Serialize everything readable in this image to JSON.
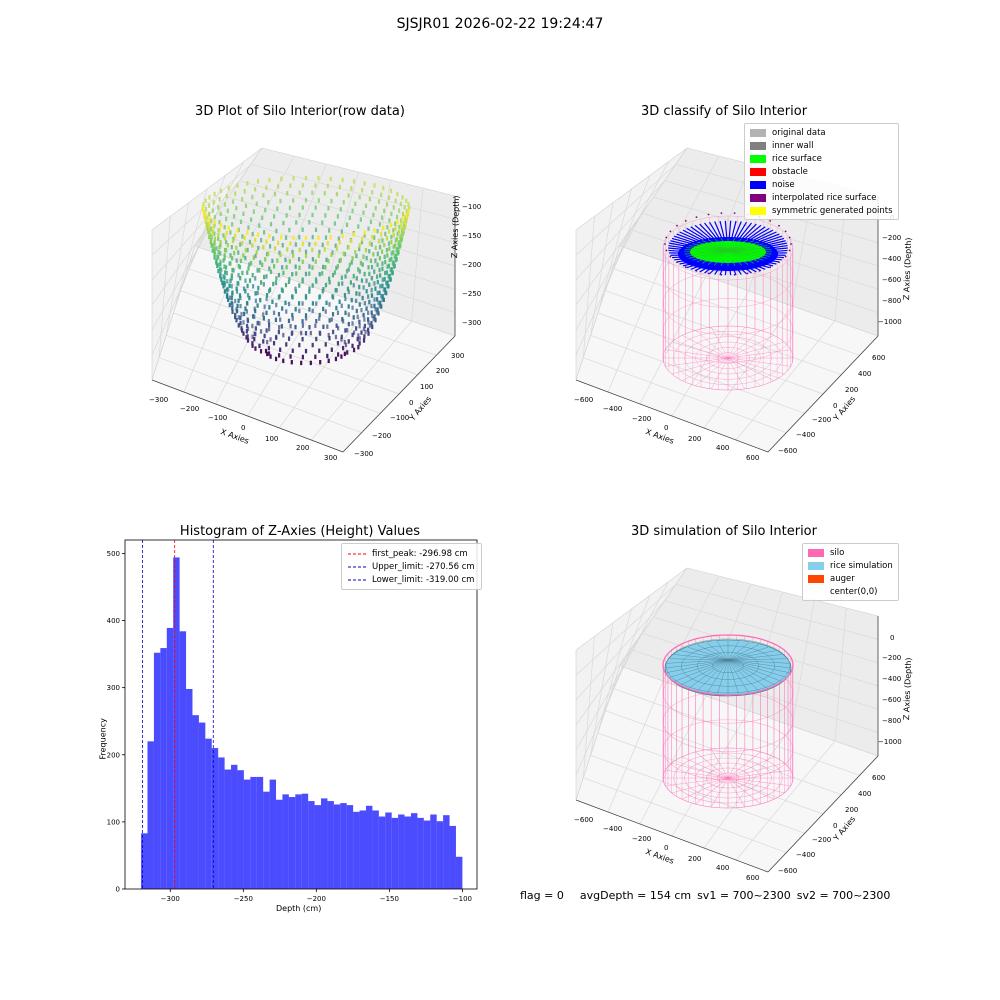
{
  "suptitle": "SJSJR01 2026-02-22 19:24:47",
  "panels": {
    "raw": {
      "title": "3D Plot of Silo Interior(row data)",
      "xlabel": "X Axies",
      "ylabel": "Y Axies",
      "zlabel": "Z Axies (Depth)",
      "xticks": [
        "−300",
        "−200",
        "−100",
        "0",
        "100",
        "200",
        "300"
      ],
      "yticks": [
        "−300",
        "−200",
        "−100",
        "0",
        "100",
        "200",
        "300"
      ],
      "zticks": [
        "−100",
        "−150",
        "−200",
        "−250",
        "−300"
      ]
    },
    "classify": {
      "title": "3D classify of Silo Interior",
      "xlabel": "X Axies",
      "ylabel": "Y Axies",
      "zlabel": "Z Axies (Depth)",
      "xticks": [
        "−600",
        "−400",
        "−200",
        "0",
        "200",
        "400",
        "600"
      ],
      "yticks": [
        "−600",
        "−400",
        "−200",
        "0",
        "200",
        "400",
        "600"
      ],
      "zticks": [
        "0",
        "−200",
        "−400",
        "−600",
        "−800",
        "−1000"
      ],
      "legend": [
        {
          "label": "original data",
          "color": "#b3b3b3"
        },
        {
          "label": "inner wall",
          "color": "#808080"
        },
        {
          "label": "rice surface",
          "color": "#00ff00"
        },
        {
          "label": "obstacle",
          "color": "#ff0000"
        },
        {
          "label": "noise",
          "color": "#0000ff"
        },
        {
          "label": "interpolated rice surface",
          "color": "#800080"
        },
        {
          "label": "symmetric generated points",
          "color": "#ffff00"
        }
      ]
    },
    "simulation": {
      "title": "3D simulation of Silo Interior",
      "xlabel": "X Axies",
      "ylabel": "Y Axies",
      "zlabel": "Z Axies (Depth)",
      "xticks": [
        "−600",
        "−400",
        "−200",
        "0",
        "200",
        "400",
        "600"
      ],
      "yticks": [
        "−600",
        "−400",
        "−200",
        "0",
        "200",
        "400",
        "600"
      ],
      "zticks": [
        "0",
        "−200",
        "−400",
        "−600",
        "−800",
        "−1000"
      ],
      "legend": [
        {
          "label": "silo",
          "color": "#ff69b4"
        },
        {
          "label": "rice simulation",
          "color": "#87ceeb"
        },
        {
          "label": "auger",
          "color": "#ff4500"
        },
        {
          "label": "center(0,0)",
          "color": ""
        }
      ]
    }
  },
  "chart_data": [
    {
      "type": "scatter",
      "title": "3D Plot of Silo Interior(row data)",
      "xlabel": "X Axies",
      "ylabel": "Y Axies",
      "zlabel": "Z Axies (Depth)",
      "xlim": [
        -320,
        320
      ],
      "ylim": [
        -320,
        320
      ],
      "zlim": [
        -330,
        -90
      ],
      "colormap": "viridis",
      "grid": true
    },
    {
      "type": "histogram",
      "title": "Histogram of Z-Axies (Height) Values",
      "xlabel": "Depth (cm)",
      "ylabel": "Frequency",
      "xlim": [
        -331,
        -90
      ],
      "ylim": [
        0,
        520
      ],
      "xticks": [
        -300,
        -250,
        -200,
        -150,
        -100
      ],
      "xtick_labels": [
        "−300",
        "−250",
        "−200",
        "−150",
        "−100"
      ],
      "yticks": [
        0,
        100,
        200,
        300,
        400,
        500
      ],
      "bin_start": -320,
      "bin_width": 4.4,
      "values": [
        83,
        220,
        352,
        359,
        389,
        494,
        384,
        298,
        259,
        248,
        224,
        210,
        196,
        178,
        185,
        177,
        163,
        167,
        167,
        145,
        163,
        133,
        141,
        137,
        141,
        142,
        131,
        125,
        135,
        131,
        126,
        128,
        125,
        115,
        117,
        124,
        117,
        108,
        114,
        106,
        111,
        108,
        113,
        106,
        102,
        111,
        101,
        110,
        94,
        48
      ],
      "bar_color": "#0000ff",
      "lines": [
        {
          "label": "first_peak: -296.98 cm",
          "x": -296.98,
          "color": "#ff0000"
        },
        {
          "label": "Upper_limit: -270.56 cm",
          "x": -270.56,
          "color": "#0000cc"
        },
        {
          "label": "Lower_limit: -319.00 cm",
          "x": -319.0,
          "color": "#0000cc"
        }
      ],
      "legend": "top-right"
    }
  ],
  "footer": {
    "flag": "flag = 0",
    "avg": "avgDepth = 154 cm",
    "sv1": "sv1 = 700~2300",
    "sv2": "sv2 = 700~2300"
  }
}
